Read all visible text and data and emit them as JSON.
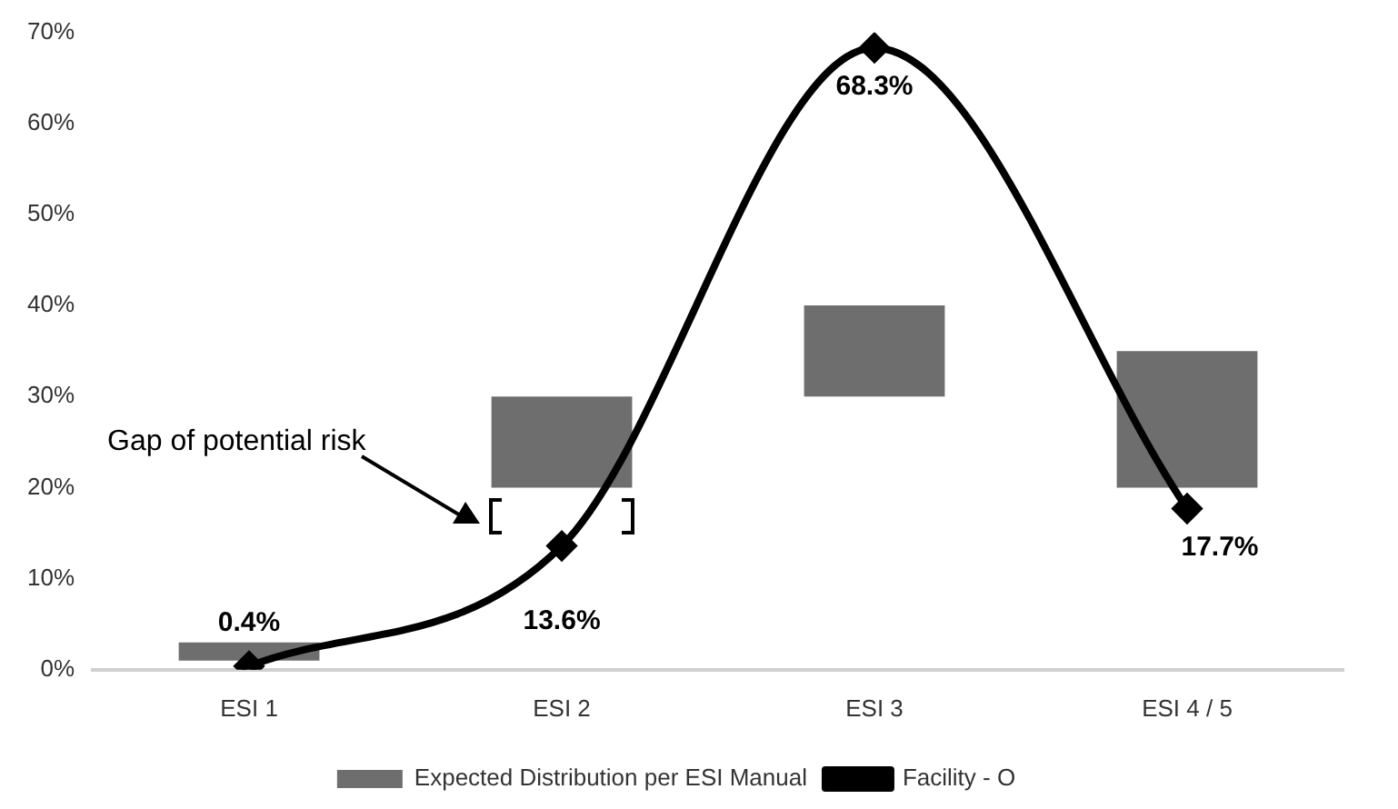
{
  "chart_data": {
    "type": "bar",
    "categories": [
      "ESI 1",
      "ESI 2",
      "ESI 3",
      "ESI 4 / 5"
    ],
    "series": [
      {
        "name": "Expected Distribution per ESI Manual",
        "color": "#6e6e6e",
        "base": [
          1,
          20,
          30,
          20
        ],
        "values": [
          2,
          10,
          10,
          15
        ]
      },
      {
        "name": "Facility - O",
        "type": "line",
        "color": "#000000",
        "values": [
          0.4,
          13.6,
          68.3,
          17.7
        ],
        "value_labels": [
          "0.4%",
          "13.6%",
          "68.3%",
          "17.7%"
        ],
        "marker": "diamond"
      }
    ],
    "ylim": [
      0,
      70
    ],
    "yticks": [
      {
        "value": 0,
        "label": "0%"
      },
      {
        "value": 10,
        "label": "10%"
      },
      {
        "value": 20,
        "label": "20%"
      },
      {
        "value": 30,
        "label": "30%"
      },
      {
        "value": 40,
        "label": "40%"
      },
      {
        "value": 50,
        "label": "50%"
      },
      {
        "value": 60,
        "label": "60%"
      },
      {
        "value": 70,
        "label": "70%"
      }
    ],
    "grid": false,
    "legend": "bottom",
    "annotations": [
      "Gap of potential risk"
    ]
  }
}
